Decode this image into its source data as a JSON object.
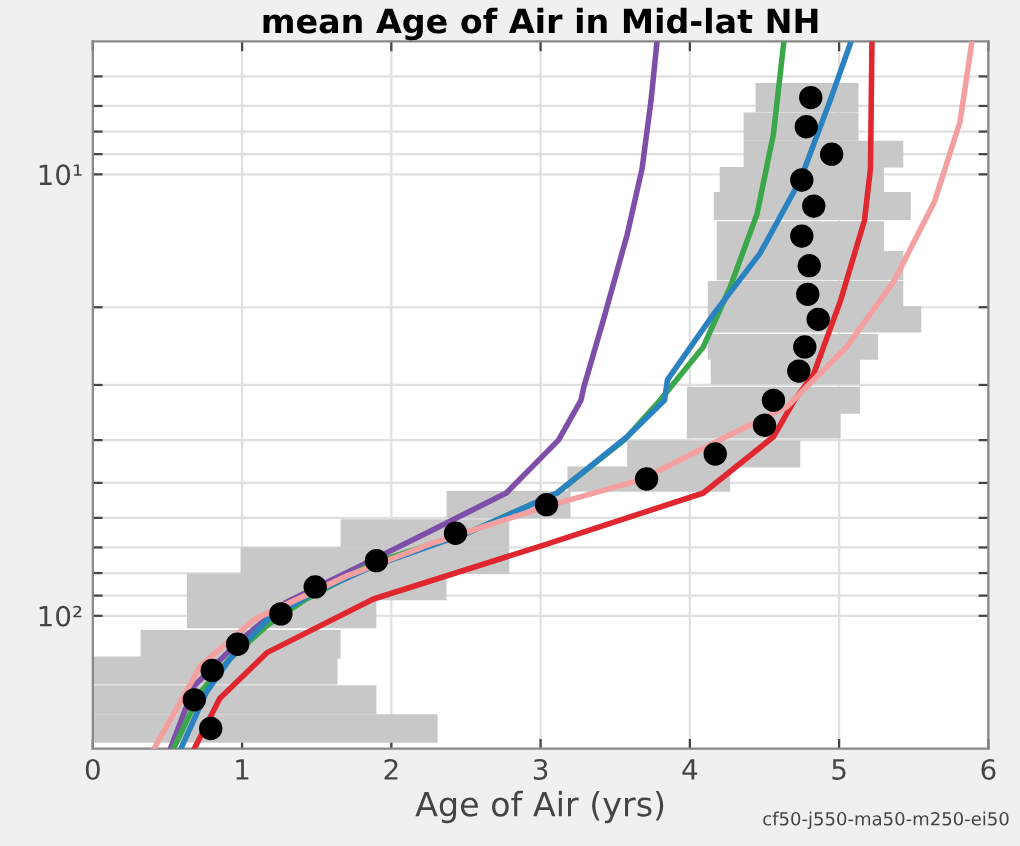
{
  "chart_data": {
    "type": "line",
    "title": "mean Age of Air in Mid-lat NH",
    "xlabel": "Age of Air (yrs)",
    "annotations": [
      "cf50-j550-ma50-m250-ei50"
    ],
    "xlim": [
      0,
      6
    ],
    "xticks": [
      0,
      1,
      2,
      3,
      4,
      5,
      6
    ],
    "ylim": [
      200,
      5
    ],
    "log": "y",
    "grid": true,
    "legend": false,
    "yticks": [
      {
        "value": 6,
        "label": null
      },
      {
        "value": 7,
        "label": null
      },
      {
        "value": 8,
        "label": null
      },
      {
        "value": 9,
        "label": null
      },
      {
        "value": 10,
        "label": "10¹"
      },
      {
        "value": 20,
        "label": null
      },
      {
        "value": 30,
        "label": null
      },
      {
        "value": 40,
        "label": null
      },
      {
        "value": 50,
        "label": null
      },
      {
        "value": 60,
        "label": null
      },
      {
        "value": 70,
        "label": null
      },
      {
        "value": 80,
        "label": null
      },
      {
        "value": 90,
        "label": null
      },
      {
        "value": 100,
        "label": "10²"
      }
    ],
    "series": [
      {
        "type": "scatter",
        "color": "#000000",
        "marker": "circle",
        "x": [
          4.81,
          4.78,
          4.95,
          4.75,
          4.83,
          4.75,
          4.8,
          4.79,
          4.86,
          4.77,
          4.73,
          4.56,
          4.5,
          4.17,
          3.71,
          3.04,
          2.43,
          1.9,
          1.49,
          1.26,
          0.97,
          0.8,
          0.68,
          0.79
        ],
        "values": [
          6.7,
          7.8,
          9.0,
          10.3,
          11.8,
          13.8,
          16.1,
          18.7,
          21.3,
          24.6,
          27.9,
          32.5,
          37.0,
          43,
          49,
          56,
          65,
          75,
          86,
          99,
          116,
          133,
          155,
          180
        ],
        "xerrors": [
          [
            4.44,
            5.13
          ],
          [
            4.36,
            5.13
          ],
          [
            4.36,
            5.43
          ],
          [
            4.2,
            5.3
          ],
          [
            4.16,
            5.48
          ],
          [
            4.18,
            5.3
          ],
          [
            4.18,
            5.43
          ],
          [
            4.12,
            5.43
          ],
          [
            4.12,
            5.55
          ],
          [
            4.12,
            5.26
          ],
          [
            4.14,
            5.14
          ],
          [
            3.98,
            5.14
          ],
          [
            3.98,
            5.01
          ],
          [
            3.58,
            4.74
          ],
          [
            3.18,
            4.27
          ],
          [
            2.37,
            3.2
          ],
          [
            1.66,
            2.79
          ],
          [
            0.99,
            2.79
          ],
          [
            0.63,
            2.37
          ],
          [
            0.63,
            1.9
          ],
          [
            0.32,
            1.66
          ],
          [
            0,
            1.64
          ],
          [
            0,
            1.9
          ],
          [
            0,
            2.31
          ]
        ]
      },
      {
        "color": "#7e4fa8",
        "x": [
          3.78,
          3.74,
          3.68,
          3.58,
          3.42,
          3.29,
          3.27,
          3.12,
          2.77,
          2.28,
          1.88,
          1.3,
          0.97,
          0.68,
          0.52
        ],
        "values": [
          5.0,
          6.8,
          9.7,
          13.7,
          21.4,
          30.3,
          32.5,
          40,
          52.7,
          63.8,
          74.5,
          93,
          115,
          144,
          200
        ]
      },
      {
        "color": "#3aa84a",
        "x": [
          4.63,
          4.56,
          4.45,
          4.27,
          4.09,
          3.8,
          3.56,
          3.11,
          2.51,
          1.88,
          1.43,
          1.17,
          0.92,
          0.72,
          0.54
        ],
        "values": [
          5.0,
          8.1,
          12.3,
          18.0,
          24.6,
          32.5,
          40,
          52.7,
          64.9,
          75.9,
          91.6,
          105,
          125,
          149,
          200
        ]
      },
      {
        "color": "#2a82c0",
        "x": [
          5.08,
          4.94,
          4.74,
          4.47,
          4.16,
          3.85,
          3.83,
          3.58,
          3.11,
          2.51,
          1.88,
          1.48,
          1.17,
          0.92,
          0.76,
          0.59
        ],
        "values": [
          5.0,
          6.8,
          10.3,
          15.1,
          20.7,
          29.2,
          32.5,
          39.3,
          52.7,
          64.9,
          77.2,
          88.7,
          102,
          125,
          149,
          200
        ]
      },
      {
        "color": "#e0262e",
        "x": [
          5.22,
          5.21,
          5.17,
          5.01,
          4.83,
          4.7,
          4.56,
          4.09,
          3.0,
          1.88,
          1.17,
          0.85,
          0.68
        ],
        "values": [
          5.0,
          9.7,
          12.7,
          19.3,
          28.3,
          32.5,
          39.3,
          52.7,
          69.5,
          91.6,
          121,
          154,
          200
        ]
      },
      {
        "color": "#f4a0a0",
        "x": [
          5.89,
          5.81,
          5.64,
          5.37,
          5.05,
          4.65,
          4.29,
          3.67,
          3.04,
          2.28,
          1.7,
          1.08,
          0.72,
          0.41
        ],
        "values": [
          5.0,
          7.6,
          11.5,
          17.4,
          24.6,
          33.6,
          38.6,
          49.2,
          56.5,
          68.4,
          81.3,
          102,
          130,
          200
        ]
      }
    ]
  }
}
